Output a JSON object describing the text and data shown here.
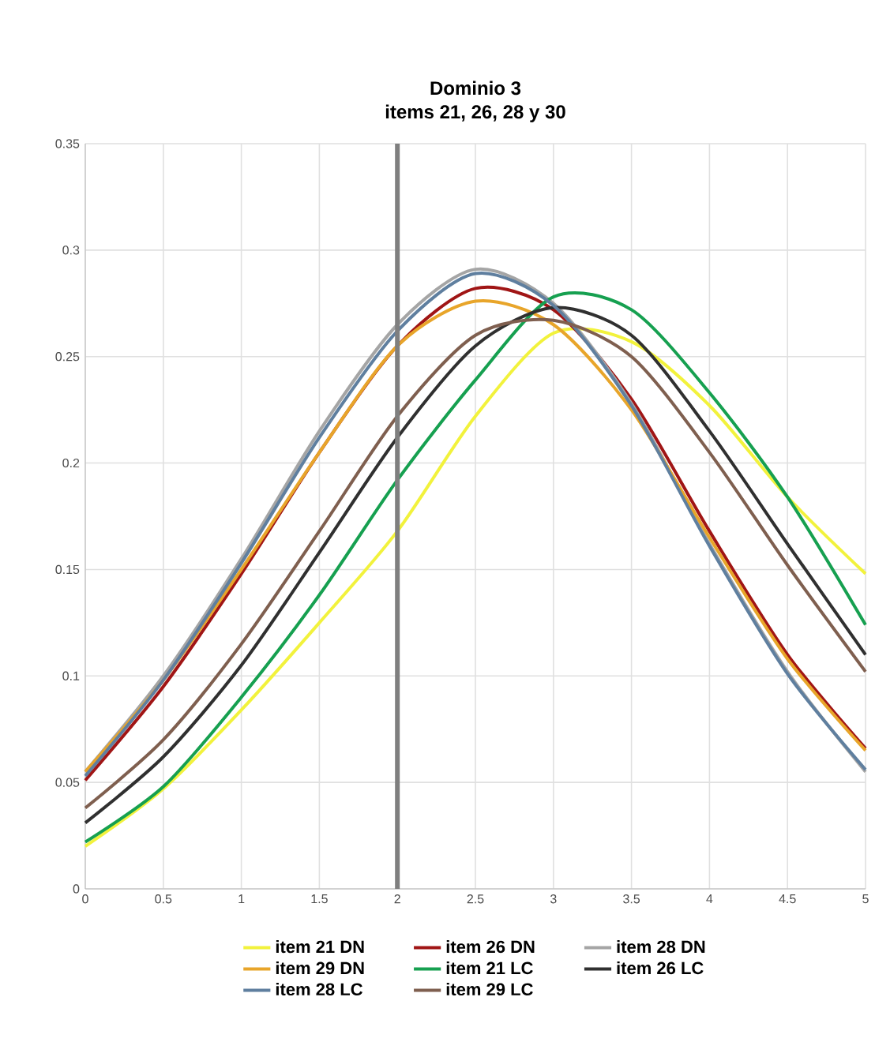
{
  "chart_data": {
    "type": "line",
    "title": "Dominio 3",
    "subtitle": "items 21, 26, 28 y 30",
    "x": [
      0,
      0.5,
      1,
      1.5,
      2,
      2.5,
      3,
      3.5,
      4,
      4.5,
      5
    ],
    "series": [
      {
        "name": "item 21 DN",
        "color": "#f2f23c",
        "values": [
          0.02,
          0.047,
          0.084,
          0.125,
          0.168,
          0.222,
          0.261,
          0.257,
          0.227,
          0.184,
          0.148
        ]
      },
      {
        "name": "item 26 DN",
        "color": "#a01515",
        "values": [
          0.051,
          0.095,
          0.148,
          0.205,
          0.255,
          0.282,
          0.272,
          0.23,
          0.168,
          0.11,
          0.066
        ]
      },
      {
        "name": "item 28 DN",
        "color": "#a5a5a5",
        "values": [
          0.055,
          0.1,
          0.155,
          0.215,
          0.265,
          0.291,
          0.275,
          0.228,
          0.162,
          0.102,
          0.055
        ]
      },
      {
        "name": "item 29 DN",
        "color": "#e8a52a",
        "values": [
          0.055,
          0.098,
          0.15,
          0.205,
          0.255,
          0.276,
          0.265,
          0.225,
          0.165,
          0.108,
          0.065
        ]
      },
      {
        "name": "item 21 LC",
        "color": "#16a050",
        "values": [
          0.022,
          0.048,
          0.09,
          0.138,
          0.192,
          0.239,
          0.278,
          0.272,
          0.233,
          0.184,
          0.124
        ]
      },
      {
        "name": "item 26 LC",
        "color": "#303030",
        "values": [
          0.031,
          0.062,
          0.105,
          0.158,
          0.212,
          0.255,
          0.273,
          0.26,
          0.215,
          0.162,
          0.11
        ]
      },
      {
        "name": "item 28 LC",
        "color": "#5f7f9f",
        "values": [
          0.053,
          0.098,
          0.153,
          0.212,
          0.262,
          0.289,
          0.274,
          0.227,
          0.161,
          0.101,
          0.056
        ]
      },
      {
        "name": "item 29 LC",
        "color": "#7f5f4f",
        "values": [
          0.038,
          0.07,
          0.115,
          0.168,
          0.222,
          0.26,
          0.267,
          0.25,
          0.205,
          0.152,
          0.102
        ]
      }
    ],
    "xlim": [
      0,
      5
    ],
    "ylim": [
      0,
      0.35
    ],
    "xticks": [
      0,
      0.5,
      1,
      1.5,
      2,
      2.5,
      3,
      3.5,
      4,
      4.5,
      5
    ],
    "yticks": [
      0,
      0.05,
      0.1,
      0.15,
      0.2,
      0.25,
      0.3,
      0.35
    ],
    "ref_lines": [
      {
        "axis": "x",
        "value": 2,
        "color": "#7f7f7f"
      }
    ],
    "grid": true,
    "legend": "bottom"
  }
}
